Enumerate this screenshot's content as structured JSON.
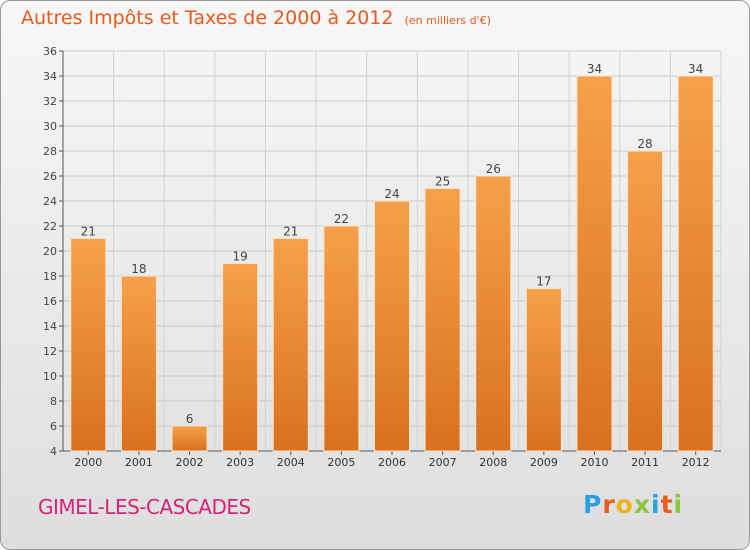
{
  "chart_data": {
    "type": "bar",
    "title": "Autres Impôts et Taxes de 2000 à 2012",
    "subtitle": "(en milliers d'€)",
    "categories": [
      "2000",
      "2001",
      "2002",
      "2003",
      "2004",
      "2005",
      "2006",
      "2007",
      "2008",
      "2009",
      "2010",
      "2011",
      "2012"
    ],
    "values": [
      21,
      18,
      6,
      19,
      21,
      22,
      24,
      25,
      26,
      17,
      34,
      28,
      34
    ],
    "ylim": [
      4,
      36
    ],
    "yticks": [
      4,
      6,
      8,
      10,
      12,
      14,
      16,
      18,
      20,
      22,
      24,
      26,
      28,
      30,
      32,
      34,
      36
    ],
    "grid": true,
    "data_labels": true,
    "bar_color": "#f0933e"
  },
  "footer": {
    "commune": "GIMEL-LES-CASCADES",
    "brand": "Proxiti"
  },
  "colors": {
    "title": "#e65a1c",
    "commune": "#d7237a",
    "brand_letters": [
      "#2aa0e6",
      "#e85d1e",
      "#f0b21a",
      "#8bc53f",
      "#2aa0e6",
      "#e85d1e",
      "#8bc53f"
    ]
  }
}
